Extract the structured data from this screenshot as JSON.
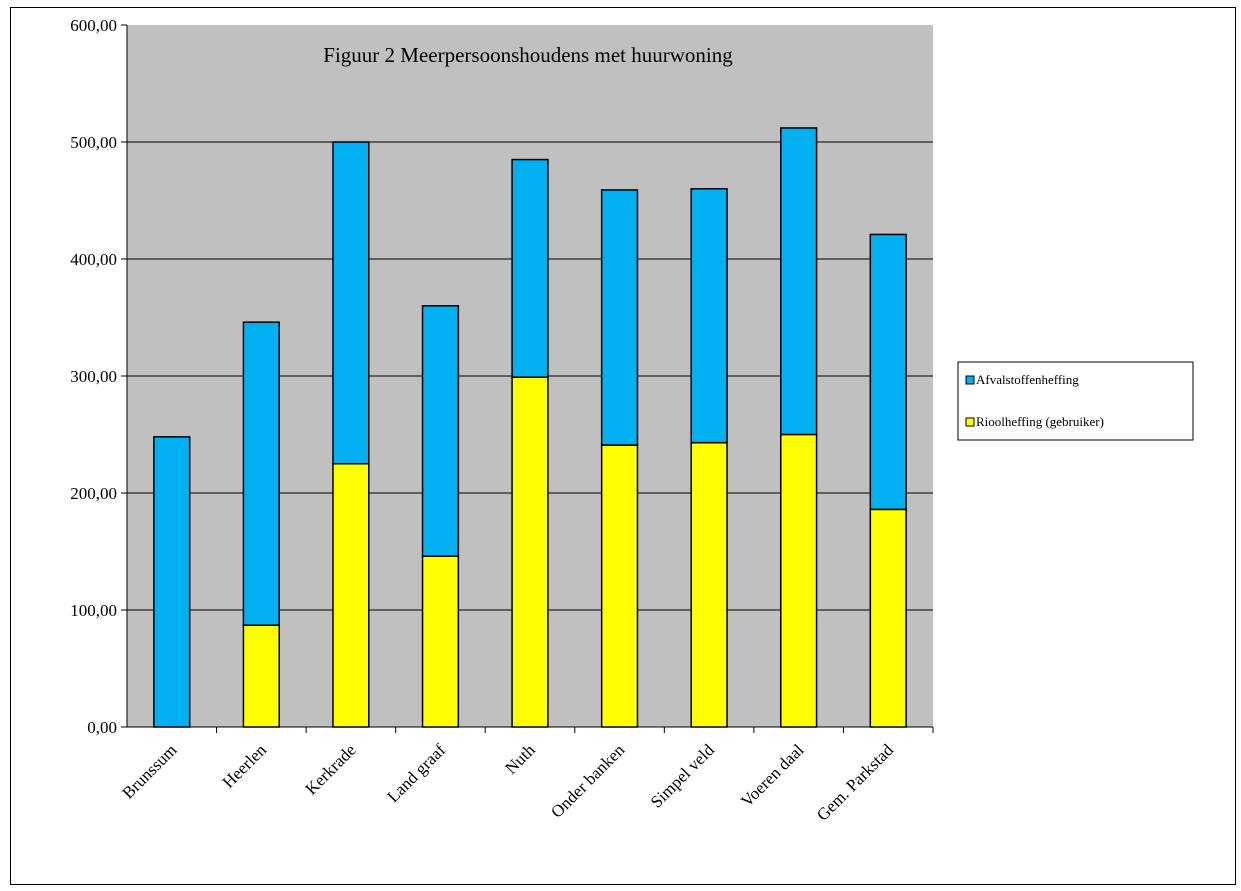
{
  "chart_data": {
    "type": "bar",
    "stacked": true,
    "title": "Figuur 2 Meerpersoonshoudens met huurwoning",
    "xlabel": "",
    "ylabel": "",
    "ylim": [
      0,
      600
    ],
    "ytick_labels": [
      "0,00",
      "100,00",
      "200,00",
      "300,00",
      "400,00",
      "500,00",
      "600,00"
    ],
    "grid": true,
    "legend_position": "right",
    "categories": [
      "Brunssum",
      "Heerlen",
      "Kerkrade",
      "Land graaf",
      "Nuth",
      "Onder banken",
      "Simpel veld",
      "Voeren daal",
      "Gem. Parkstad"
    ],
    "series": [
      {
        "name": "Rioolheffing (gebruiker)",
        "color": "#ffff00",
        "values": [
          0,
          87,
          225,
          146,
          299,
          241,
          243,
          250,
          186
        ]
      },
      {
        "name": "Afvalstoffenheffing",
        "color": "#00b0f0",
        "values": [
          248,
          259,
          275,
          214,
          186,
          218,
          217,
          262,
          235
        ]
      }
    ],
    "legend_order": [
      "Afvalstoffenheffing",
      "Rioolheffing (gebruiker)"
    ],
    "plot_background": "#c0c0c0"
  }
}
